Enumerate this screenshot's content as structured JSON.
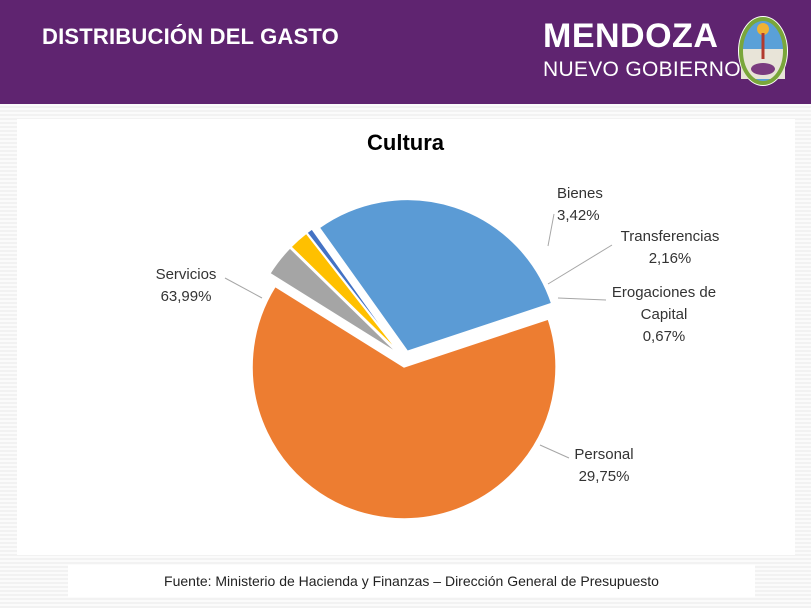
{
  "header": {
    "title": "DISTRIBUCIÓN DEL GASTO",
    "brand_name": "MENDOZA",
    "brand_sub": "NUEVO GOBIERNO",
    "background_color": "#5f2470",
    "seal_icon": "mendoza-coat-of-arms"
  },
  "chart_data": {
    "type": "pie",
    "title": "Cultura",
    "slices": [
      {
        "name": "Bienes",
        "value": 3.42,
        "value_label": "3,42%",
        "color": "#a5a5a5",
        "exploded": true
      },
      {
        "name": "Transferencias",
        "value": 2.16,
        "value_label": "2,16%",
        "color": "#ffc000",
        "exploded": true
      },
      {
        "name": "Erogaciones de Capital",
        "value": 0.67,
        "value_label": "0,67%",
        "color": "#4472c4",
        "exploded": true
      },
      {
        "name": "Personal",
        "value": 29.75,
        "value_label": "29,75%",
        "color": "#5b9bd5",
        "exploded": true
      },
      {
        "name": "Servicios",
        "value": 63.99,
        "value_label": "63,99%",
        "color": "#ed7d31",
        "exploded": true
      }
    ],
    "legend": "none"
  },
  "labels": {
    "bienes_name": "Bienes",
    "bienes_value": "3,42%",
    "transf_name": "Transferencias",
    "transf_value": "2,16%",
    "erog_name_line1": "Erogaciones de",
    "erog_name_line2": "Capital",
    "erog_value": "0,67%",
    "serv_name": "Servicios",
    "serv_value": "63,99%",
    "pers_name": "Personal",
    "pers_value": "29,75%"
  },
  "footer": {
    "source": "Fuente: Ministerio de Hacienda y Finanzas – Dirección General de Presupuesto"
  }
}
